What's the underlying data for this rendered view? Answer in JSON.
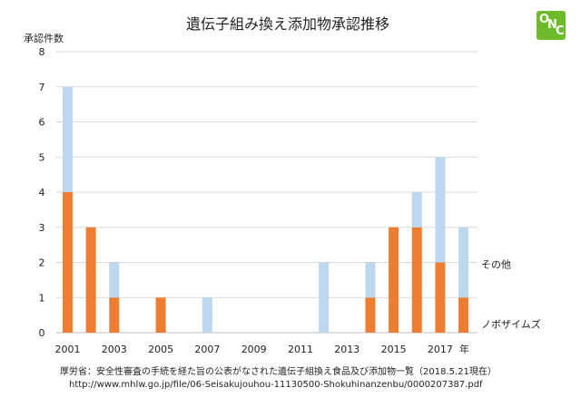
{
  "chart_data": {
    "type": "bar",
    "stacked": true,
    "title": "遺伝子組み換え添加物承認推移",
    "ylabel": "承認件数",
    "xlabel": "年",
    "ylim": [
      0,
      8
    ],
    "yticks": [
      0,
      1,
      2,
      3,
      4,
      5,
      6,
      7,
      8
    ],
    "grid": true,
    "categories": [
      "2001",
      "2002",
      "2003",
      "2004",
      "2005",
      "2006",
      "2007",
      "2008",
      "2009",
      "2010",
      "2011",
      "2012",
      "2013",
      "2014",
      "2015",
      "2016",
      "2017",
      "2018"
    ],
    "xtick_labels": [
      "2001",
      "2003",
      "2005",
      "2007",
      "2009",
      "2011",
      "2013",
      "2015",
      "2017"
    ],
    "series": [
      {
        "name": "ノボザイムズ",
        "color": "#ed7d31",
        "values": [
          4,
          3,
          1,
          0,
          1,
          0,
          0,
          0,
          0,
          0,
          0,
          0,
          0,
          1,
          3,
          3,
          2,
          1
        ]
      },
      {
        "name": "その他",
        "color": "#bdd7ee",
        "values": [
          3,
          0,
          1,
          0,
          0,
          0,
          1,
          0,
          0,
          0,
          0,
          2,
          0,
          1,
          0,
          1,
          3,
          2
        ]
      }
    ]
  },
  "logo": {
    "text": "ONC",
    "color": "#6dbb2b"
  },
  "source": {
    "line1": "厚労省：安全性審査の手続を経た旨の公表がなされた遺伝子組換え食品及び添加物一覧（2018.5.21現在）",
    "line2": "http://www.mhlw.go.jp/file/06-Seisakujouhou-11130500-Shokuhinanzenbu/0000207387.pdf"
  }
}
